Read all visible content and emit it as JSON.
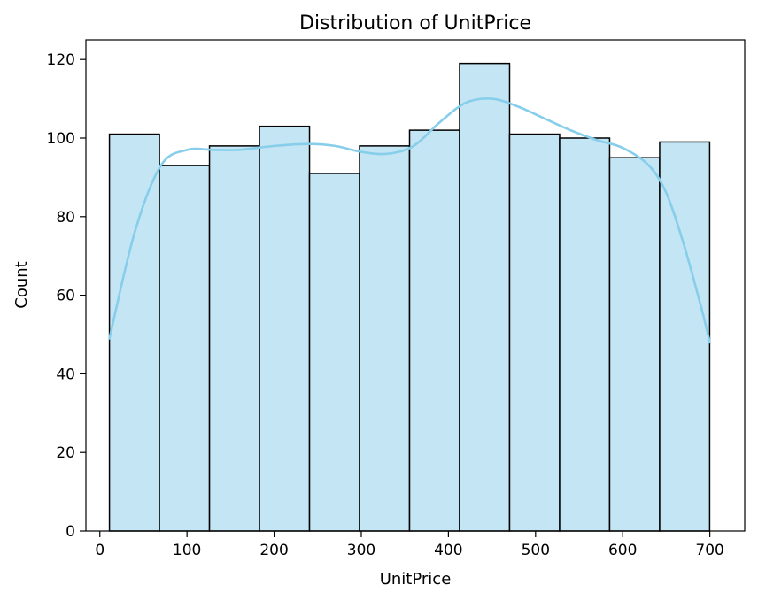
{
  "chart_data": {
    "type": "bar",
    "title": "Distribution of UnitPrice",
    "xlabel": "UnitPrice",
    "ylabel": "Count",
    "xlim": [
      -16,
      740
    ],
    "ylim": [
      0,
      125
    ],
    "xticks": [
      0,
      100,
      200,
      300,
      400,
      500,
      600,
      700
    ],
    "yticks": [
      0,
      20,
      40,
      60,
      80,
      100,
      120
    ],
    "bin_edges": [
      11.0,
      68.4,
      125.8,
      183.2,
      240.6,
      298.0,
      355.4,
      412.8,
      470.2,
      527.6,
      585.0,
      642.4,
      699.8
    ],
    "values": [
      101,
      93,
      98,
      103,
      91,
      98,
      102,
      119,
      101,
      100,
      95,
      99
    ],
    "kde": {
      "x": [
        11,
        40,
        70,
        100,
        130,
        160,
        200,
        240,
        270,
        300,
        330,
        360,
        390,
        420,
        450,
        480,
        510,
        540,
        570,
        600,
        630,
        650,
        670,
        690,
        700
      ],
      "y": [
        49,
        76,
        93,
        97,
        97,
        97,
        98,
        98.5,
        98,
        96.5,
        96,
        98,
        104,
        109,
        110,
        108,
        105,
        102,
        99.5,
        97.5,
        93,
        86,
        73,
        57,
        48
      ]
    },
    "bar_color": "#c3e5f4",
    "kde_color": "#87ceeb",
    "edge_color": "#000000",
    "grid": false,
    "legend": "none"
  }
}
